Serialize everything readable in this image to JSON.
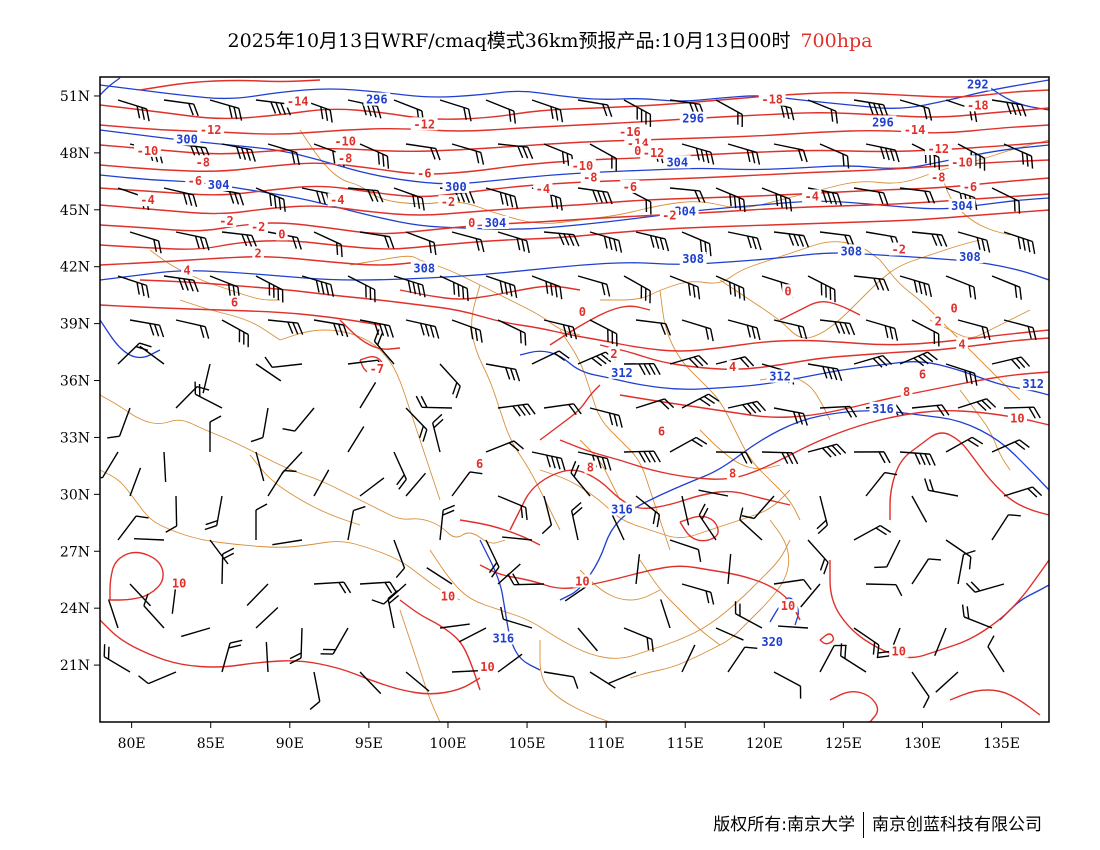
{
  "title": {
    "main": "2025年10月13日WRF/cmaq模式36km预报产品:10月13日00时",
    "level": "700hpa"
  },
  "colors": {
    "temperature": "#e0302a",
    "height": "#1f3fd0",
    "boundary": "#d9903a",
    "wind": "#000000"
  },
  "map": {
    "lon_range": [
      78,
      138
    ],
    "lat_range": [
      18,
      52
    ],
    "lon_ticks": [
      "80E",
      "85E",
      "90E",
      "95E",
      "100E",
      "105E",
      "110E",
      "115E",
      "120E",
      "125E",
      "130E",
      "135E"
    ],
    "lat_ticks": [
      "51N",
      "48N",
      "45N",
      "42N",
      "39N",
      "36N",
      "33N",
      "30N",
      "27N",
      "24N",
      "21N"
    ],
    "temperature_labels": [
      {
        "text": "-14",
        "lon": 90.5,
        "lat": 50.6
      },
      {
        "text": "-12",
        "lon": 85,
        "lat": 49.1
      },
      {
        "text": "-10",
        "lon": 81,
        "lat": 48.0
      },
      {
        "text": "-10",
        "lon": 93.5,
        "lat": 48.5
      },
      {
        "text": "-12",
        "lon": 98.5,
        "lat": 49.4
      },
      {
        "text": "-8",
        "lon": 84.5,
        "lat": 47.4
      },
      {
        "text": "-8",
        "lon": 93.5,
        "lat": 47.6
      },
      {
        "text": "-6",
        "lon": 84,
        "lat": 46.4
      },
      {
        "text": "-6",
        "lon": 98.5,
        "lat": 46.8
      },
      {
        "text": "-4",
        "lon": 81,
        "lat": 45.4
      },
      {
        "text": "-4",
        "lon": 93,
        "lat": 45.4
      },
      {
        "text": "-2",
        "lon": 86,
        "lat": 44.3
      },
      {
        "text": "-2",
        "lon": 88,
        "lat": 44.0
      },
      {
        "text": "-2",
        "lon": 100,
        "lat": 45.3
      },
      {
        "text": "0",
        "lon": 89.5,
        "lat": 43.6
      },
      {
        "text": "0",
        "lon": 101.5,
        "lat": 44.2
      },
      {
        "text": "2",
        "lon": 88,
        "lat": 42.6
      },
      {
        "text": "4",
        "lon": 83.5,
        "lat": 41.7
      },
      {
        "text": "6",
        "lon": 86.5,
        "lat": 40.0
      },
      {
        "text": "-18",
        "lon": 120.5,
        "lat": 50.7
      },
      {
        "text": "-16",
        "lon": 111.5,
        "lat": 49.0
      },
      {
        "text": "-14",
        "lon": 112,
        "lat": 48.4
      },
      {
        "text": "-12",
        "lon": 113,
        "lat": 47.9
      },
      {
        "text": "-10",
        "lon": 108.5,
        "lat": 47.2
      },
      {
        "text": "-8",
        "lon": 109,
        "lat": 46.6
      },
      {
        "text": "-6",
        "lon": 111.5,
        "lat": 46.1
      },
      {
        "text": "-4",
        "lon": 106,
        "lat": 46.0
      },
      {
        "text": "-2",
        "lon": 114,
        "lat": 44.6
      },
      {
        "text": "0",
        "lon": 108.5,
        "lat": 39.5
      },
      {
        "text": "2",
        "lon": 110.5,
        "lat": 37.3
      },
      {
        "text": "4",
        "lon": 118,
        "lat": 36.6
      },
      {
        "text": "6",
        "lon": 113.5,
        "lat": 33.2
      },
      {
        "text": "8",
        "lon": 109,
        "lat": 31.3
      },
      {
        "text": "8",
        "lon": 118,
        "lat": 31.0
      },
      {
        "text": "10",
        "lon": 108.5,
        "lat": 25.3
      },
      {
        "text": "10",
        "lon": 100,
        "lat": 24.5
      },
      {
        "text": "10",
        "lon": 83,
        "lat": 25.2
      },
      {
        "text": "10",
        "lon": 102.5,
        "lat": 20.8
      },
      {
        "text": "10",
        "lon": 121.5,
        "lat": 24.0
      },
      {
        "text": "10",
        "lon": 128.5,
        "lat": 21.6
      },
      {
        "text": "-18",
        "lon": 133.5,
        "lat": 50.4
      },
      {
        "text": "-14",
        "lon": 129.5,
        "lat": 49.1
      },
      {
        "text": "-12",
        "lon": 131,
        "lat": 48.1
      },
      {
        "text": "-10",
        "lon": 132.5,
        "lat": 47.4
      },
      {
        "text": "-8",
        "lon": 131,
        "lat": 46.6
      },
      {
        "text": "-6",
        "lon": 133,
        "lat": 46.1
      },
      {
        "text": "-4",
        "lon": 123,
        "lat": 45.6
      },
      {
        "text": "-2",
        "lon": 128.5,
        "lat": 42.8
      },
      {
        "text": "0",
        "lon": 121.5,
        "lat": 40.6
      },
      {
        "text": "0",
        "lon": 132,
        "lat": 39.7
      },
      {
        "text": "2",
        "lon": 131,
        "lat": 39.0
      },
      {
        "text": "4",
        "lon": 132.5,
        "lat": 37.8
      },
      {
        "text": "6",
        "lon": 130,
        "lat": 36.2
      },
      {
        "text": "8",
        "lon": 129,
        "lat": 35.3
      },
      {
        "text": "10",
        "lon": 136,
        "lat": 33.9
      },
      {
        "text": "-7",
        "lon": 95.5,
        "lat": 36.5
      },
      {
        "text": "6",
        "lon": 102,
        "lat": 31.5
      },
      {
        "text": "0",
        "lon": 112,
        "lat": 48.0
      }
    ],
    "height_labels": [
      {
        "text": "296",
        "lon": 95.5,
        "lat": 50.7
      },
      {
        "text": "300",
        "lon": 83.5,
        "lat": 48.6
      },
      {
        "text": "304",
        "lon": 85.5,
        "lat": 46.2
      },
      {
        "text": "300",
        "lon": 100.5,
        "lat": 46.1
      },
      {
        "text": "304",
        "lon": 103,
        "lat": 44.2
      },
      {
        "text": "308",
        "lon": 98.5,
        "lat": 41.8
      },
      {
        "text": "296",
        "lon": 115.5,
        "lat": 49.7
      },
      {
        "text": "304",
        "lon": 114.5,
        "lat": 47.4
      },
      {
        "text": "304",
        "lon": 115,
        "lat": 44.8
      },
      {
        "text": "308",
        "lon": 115.5,
        "lat": 42.3
      },
      {
        "text": "312",
        "lon": 111,
        "lat": 36.3
      },
      {
        "text": "312",
        "lon": 121,
        "lat": 36.1
      },
      {
        "text": "316",
        "lon": 111,
        "lat": 29.1
      },
      {
        "text": "316",
        "lon": 103.5,
        "lat": 22.3
      },
      {
        "text": "320",
        "lon": 120.5,
        "lat": 22.1
      },
      {
        "text": "292",
        "lon": 133.5,
        "lat": 51.5
      },
      {
        "text": "296",
        "lon": 127.5,
        "lat": 49.5
      },
      {
        "text": "304",
        "lon": 132.5,
        "lat": 45.1
      },
      {
        "text": "308",
        "lon": 125.5,
        "lat": 42.7
      },
      {
        "text": "308",
        "lon": 133,
        "lat": 42.4
      },
      {
        "text": "316",
        "lon": 127.5,
        "lat": 34.4
      },
      {
        "text": "312",
        "lon": 137,
        "lat": 35.7
      }
    ]
  },
  "copyright": {
    "left": "版权所有:南京大学",
    "right": "南京创蓝科技有限公司"
  }
}
